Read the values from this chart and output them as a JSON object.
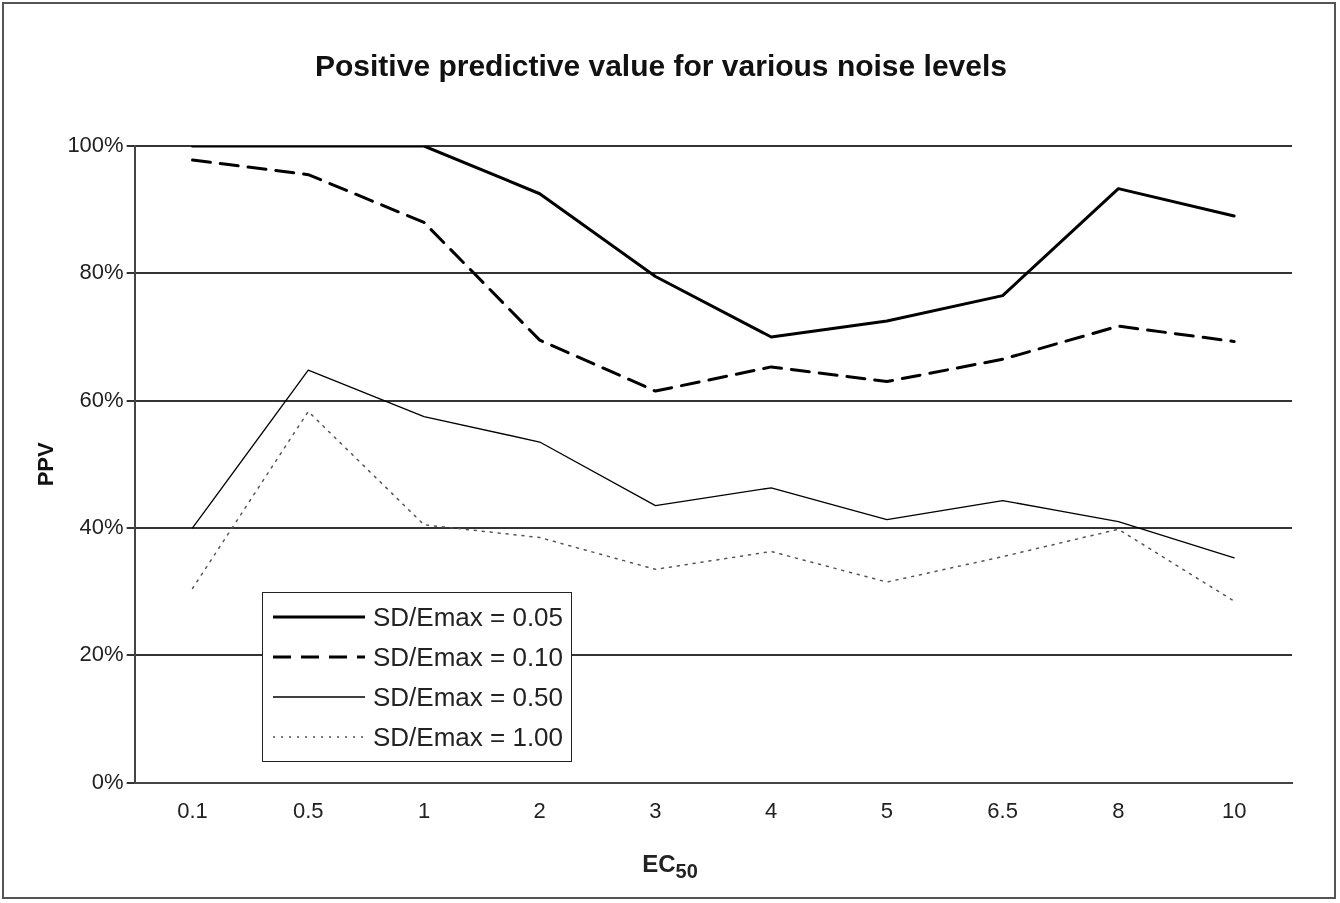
{
  "chart_data": {
    "type": "line",
    "title": "Positive predictive value for various noise levels",
    "xlabel": "EC$_{50}$",
    "ylabel": "PPV",
    "categories": [
      "0.1",
      "0.5",
      "1",
      "2",
      "3",
      "4",
      "5",
      "6.5",
      "8",
      "10"
    ],
    "series": [
      {
        "name": "SD/Emax = 0.05",
        "color": "#000000",
        "line_style": "solid",
        "values": [
          100,
          100,
          100,
          92.5,
          79.5,
          70,
          72.5,
          76.5,
          93.3,
          89
        ]
      },
      {
        "name": "SD/Emax = 0.10",
        "color": "#000000",
        "line_style": "dashed",
        "values": [
          97.8,
          95.5,
          88,
          69.5,
          61.5,
          65.3,
          63,
          66.5,
          71.7,
          69.3
        ]
      },
      {
        "name": "SD/Emax = 0.50",
        "color": "#000000",
        "line_style": "solid",
        "values": [
          40,
          64.8,
          57.5,
          53.5,
          43.5,
          46.3,
          41.3,
          44.3,
          41,
          35.3
        ]
      },
      {
        "name": "SD/Emax = 1.00",
        "color": "#555555",
        "line_style": "dotted",
        "values": [
          30.5,
          58.3,
          40.5,
          38.5,
          33.5,
          36.3,
          31.5,
          35.5,
          39.8,
          28.5
        ]
      }
    ],
    "ylim": [
      0,
      100
    ],
    "yticks": [
      {
        "value": 0,
        "label": "0%"
      },
      {
        "value": 20,
        "label": "20%"
      },
      {
        "value": 40,
        "label": "40%"
      },
      {
        "value": 60,
        "label": "60%"
      },
      {
        "value": 80,
        "label": "80%"
      },
      {
        "value": 100,
        "label": "100%"
      }
    ],
    "grid": "y",
    "legend": "bottom left",
    "marker": "none"
  }
}
